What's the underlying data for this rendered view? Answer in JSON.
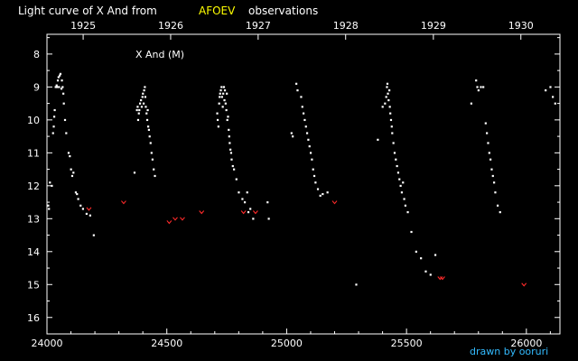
{
  "header": {
    "title_prefix": "Light curve of X And from",
    "title_source": "AFOEV",
    "title_suffix": "observations",
    "star_label": "X And (M)",
    "credit": "drawn by ooruri"
  },
  "colors": {
    "background": "#000000",
    "axis": "#ffffff",
    "observation": "#ffffff",
    "fainter_than": "#ff2a2a",
    "title_source": "#ffff00",
    "credit": "#33bbff"
  },
  "chart_data": {
    "type": "scatter",
    "title": "Light curve of X And from AFOEV observations",
    "xlim": [
      24000,
      26140
    ],
    "ylim": [
      16.5,
      7.4
    ],
    "y_inverted": true,
    "x_ticks": [
      24000,
      24500,
      25000,
      25500,
      26000
    ],
    "x_tick_labels": [
      "24000",
      "24500",
      "25000",
      "25500",
      "26000"
    ],
    "y_ticks": [
      8,
      9,
      10,
      11,
      12,
      13,
      14,
      15,
      16
    ],
    "y_tick_labels": [
      "8",
      "9",
      "10",
      "11",
      "12",
      "13",
      "14",
      "15",
      "16"
    ],
    "year_ticks": [
      {
        "label": "1925",
        "x": 24151
      },
      {
        "label": "1926",
        "x": 24516
      },
      {
        "label": "1927",
        "x": 24881
      },
      {
        "label": "1928",
        "x": 25246
      },
      {
        "label": "1929",
        "x": 25612
      },
      {
        "label": "1930",
        "x": 25977
      }
    ],
    "series": [
      {
        "name": "",
        "marker": "dot",
        "points": [
          [
            24005,
            12.6
          ],
          [
            24008,
            12.7
          ],
          [
            24012,
            11.9
          ],
          [
            24020,
            12.0
          ],
          [
            24025,
            10.4
          ],
          [
            24028,
            10.2
          ],
          [
            24030,
            9.9
          ],
          [
            24032,
            9.7
          ],
          [
            24036,
            9.0
          ],
          [
            24040,
            8.95
          ],
          [
            24042,
            9.0
          ],
          [
            24045,
            8.8
          ],
          [
            24048,
            8.7
          ],
          [
            24050,
            9.0
          ],
          [
            24053,
            8.65
          ],
          [
            24056,
            8.6
          ],
          [
            24060,
            9.05
          ],
          [
            24062,
            8.8
          ],
          [
            24065,
            9.0
          ],
          [
            24068,
            9.2
          ],
          [
            24070,
            9.5
          ],
          [
            24075,
            10.0
          ],
          [
            24080,
            10.4
          ],
          [
            24090,
            11.0
          ],
          [
            24095,
            11.1
          ],
          [
            24100,
            11.5
          ],
          [
            24105,
            11.7
          ],
          [
            24110,
            11.6
          ],
          [
            24120,
            12.2
          ],
          [
            24125,
            12.25
          ],
          [
            24130,
            12.4
          ],
          [
            24140,
            12.6
          ],
          [
            24150,
            12.7
          ],
          [
            24165,
            12.85
          ],
          [
            24180,
            12.9
          ],
          [
            24195,
            13.5
          ],
          [
            24365,
            11.6
          ],
          [
            24375,
            9.7
          ],
          [
            24378,
            9.6
          ],
          [
            24380,
            10.0
          ],
          [
            24383,
            9.8
          ],
          [
            24385,
            9.7
          ],
          [
            24388,
            9.5
          ],
          [
            24392,
            9.4
          ],
          [
            24395,
            9.6
          ],
          [
            24398,
            9.3
          ],
          [
            24400,
            9.2
          ],
          [
            24403,
            9.5
          ],
          [
            24405,
            9.1
          ],
          [
            24408,
            9.0
          ],
          [
            24410,
            9.3
          ],
          [
            24412,
            9.6
          ],
          [
            24415,
            9.8
          ],
          [
            24418,
            10.0
          ],
          [
            24420,
            9.7
          ],
          [
            24422,
            10.2
          ],
          [
            24425,
            10.3
          ],
          [
            24428,
            10.5
          ],
          [
            24432,
            10.7
          ],
          [
            24436,
            11.0
          ],
          [
            24440,
            11.2
          ],
          [
            24445,
            11.5
          ],
          [
            24450,
            11.7
          ],
          [
            24710,
            9.8
          ],
          [
            24712,
            10.0
          ],
          [
            24715,
            10.2
          ],
          [
            24718,
            9.5
          ],
          [
            24720,
            9.3
          ],
          [
            24722,
            9.2
          ],
          [
            24725,
            9.1
          ],
          [
            24728,
            9.0
          ],
          [
            24730,
            9.3
          ],
          [
            24733,
            9.6
          ],
          [
            24735,
            9.2
          ],
          [
            24738,
            9.0
          ],
          [
            24740,
            9.4
          ],
          [
            24742,
            9.1
          ],
          [
            24745,
            9.5
          ],
          [
            24748,
            9.7
          ],
          [
            24750,
            9.2
          ],
          [
            24752,
            10.0
          ],
          [
            24755,
            9.9
          ],
          [
            24758,
            10.3
          ],
          [
            24760,
            10.5
          ],
          [
            24762,
            10.7
          ],
          [
            24765,
            10.9
          ],
          [
            24768,
            11.0
          ],
          [
            24770,
            11.2
          ],
          [
            24775,
            11.4
          ],
          [
            24780,
            11.5
          ],
          [
            24790,
            11.8
          ],
          [
            24800,
            12.2
          ],
          [
            24815,
            12.4
          ],
          [
            24825,
            12.5
          ],
          [
            24835,
            12.2
          ],
          [
            24840,
            12.8
          ],
          [
            24848,
            12.7
          ],
          [
            24860,
            13.0
          ],
          [
            24920,
            12.5
          ],
          [
            24925,
            13.0
          ],
          [
            25020,
            10.4
          ],
          [
            25025,
            10.5
          ],
          [
            25040,
            8.9
          ],
          [
            25045,
            9.1
          ],
          [
            25060,
            9.3
          ],
          [
            25065,
            9.6
          ],
          [
            25070,
            9.8
          ],
          [
            25075,
            10.0
          ],
          [
            25080,
            10.2
          ],
          [
            25085,
            10.4
          ],
          [
            25090,
            10.6
          ],
          [
            25095,
            10.8
          ],
          [
            25100,
            11.0
          ],
          [
            25105,
            11.2
          ],
          [
            25110,
            11.5
          ],
          [
            25115,
            11.7
          ],
          [
            25120,
            11.9
          ],
          [
            25130,
            12.1
          ],
          [
            25140,
            12.3
          ],
          [
            25150,
            12.25
          ],
          [
            25170,
            12.2
          ],
          [
            25290,
            15.0
          ],
          [
            25380,
            10.6
          ],
          [
            25400,
            9.6
          ],
          [
            25410,
            9.5
          ],
          [
            25415,
            9.3
          ],
          [
            25418,
            9.0
          ],
          [
            25420,
            8.9
          ],
          [
            25422,
            9.2
          ],
          [
            25425,
            9.4
          ],
          [
            25428,
            9.1
          ],
          [
            25430,
            9.6
          ],
          [
            25432,
            9.8
          ],
          [
            25435,
            10.0
          ],
          [
            25438,
            10.2
          ],
          [
            25440,
            10.4
          ],
          [
            25445,
            10.7
          ],
          [
            25450,
            11.0
          ],
          [
            25455,
            11.2
          ],
          [
            25460,
            11.4
          ],
          [
            25465,
            11.6
          ],
          [
            25470,
            11.8
          ],
          [
            25475,
            12.0
          ],
          [
            25480,
            12.2
          ],
          [
            25485,
            11.9
          ],
          [
            25490,
            12.4
          ],
          [
            25495,
            12.6
          ],
          [
            25505,
            12.8
          ],
          [
            25520,
            13.4
          ],
          [
            25540,
            14.0
          ],
          [
            25560,
            14.2
          ],
          [
            25580,
            14.6
          ],
          [
            25600,
            14.7
          ],
          [
            25620,
            14.1
          ],
          [
            25770,
            9.5
          ],
          [
            25790,
            8.8
          ],
          [
            25795,
            9.0
          ],
          [
            25800,
            9.1
          ],
          [
            25810,
            9.0
          ],
          [
            25820,
            9.0
          ],
          [
            25830,
            10.1
          ],
          [
            25835,
            10.4
          ],
          [
            25840,
            10.7
          ],
          [
            25845,
            11.0
          ],
          [
            25850,
            11.2
          ],
          [
            25855,
            11.5
          ],
          [
            25860,
            11.7
          ],
          [
            25865,
            11.9
          ],
          [
            25870,
            12.2
          ],
          [
            25880,
            12.6
          ],
          [
            25890,
            12.8
          ],
          [
            26080,
            9.1
          ],
          [
            26100,
            9.0
          ],
          [
            26110,
            9.3
          ],
          [
            26120,
            9.5
          ]
        ]
      },
      {
        "name": "",
        "marker": "chevron",
        "points": [
          [
            24175,
            12.7
          ],
          [
            24320,
            12.5
          ],
          [
            24510,
            13.1
          ],
          [
            24535,
            13.0
          ],
          [
            24565,
            13.0
          ],
          [
            24645,
            12.8
          ],
          [
            24820,
            12.8
          ],
          [
            24870,
            12.8
          ],
          [
            25200,
            12.5
          ],
          [
            25640,
            14.8
          ],
          [
            25650,
            14.8
          ],
          [
            25990,
            15.0
          ]
        ]
      }
    ]
  }
}
